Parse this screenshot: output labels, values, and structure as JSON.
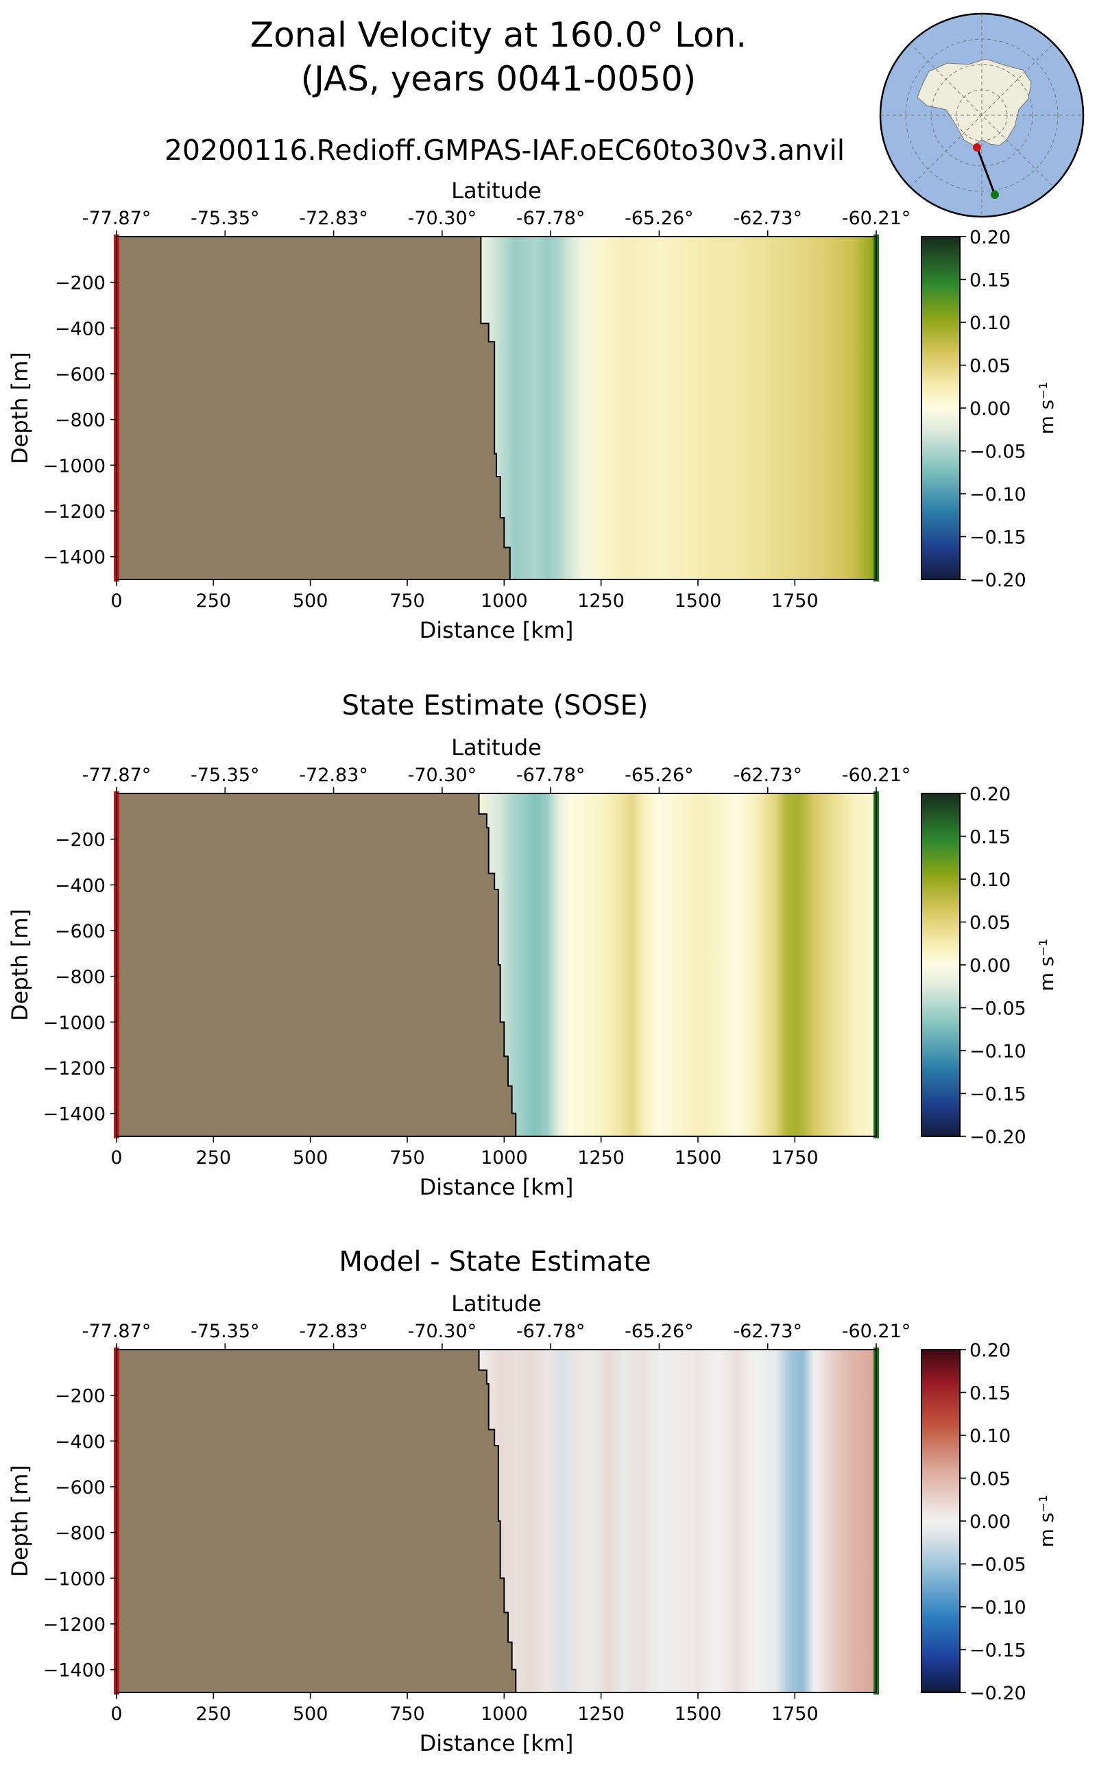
{
  "title_line1": "Zonal Velocity at 160.0° Lon.",
  "title_line2": "(JAS, years 0041-0050)",
  "subtitle": "20200116.Redioff.GMPAS-IAF.oEC60to30v3.anvil",
  "colors": {
    "land": "#8e7f64",
    "start_marker": "#cc1111",
    "end_marker": "#117711",
    "ocean_map": "#9cb9e2",
    "antarctica_map": "#eeeddb"
  },
  "chart_data": [
    {
      "type": "heatmap",
      "title": "",
      "xlabel": "Distance [km]",
      "ylabel": "Depth [m]",
      "top_axis_label": "Latitude",
      "xlim": [
        0,
        1960
      ],
      "ylim": [
        -1500,
        0
      ],
      "x_ticks": [
        "0",
        "250",
        "500",
        "750",
        "1000",
        "1250",
        "1500",
        "1750"
      ],
      "y_ticks": [
        "−200",
        "−400",
        "−600",
        "−800",
        "−1000",
        "−1200",
        "−1400"
      ],
      "lat_ticks": [
        "-77.87°",
        "-75.35°",
        "-72.83°",
        "-70.30°",
        "-67.78°",
        "-65.26°",
        "-62.73°",
        "-60.21°"
      ],
      "colorbar_label": "m s⁻¹",
      "colorbar_ticks": [
        "0.20",
        "0.15",
        "0.10",
        "0.05",
        "0.00",
        "−0.05",
        "−0.10",
        "−0.15",
        "−0.20"
      ],
      "colormap": "velocity",
      "profile_km": [
        930,
        950,
        970,
        990,
        1010,
        1030,
        1050,
        1080,
        1110,
        1140,
        1170,
        1200,
        1250,
        1300,
        1350,
        1400,
        1450,
        1500,
        1550,
        1600,
        1650,
        1700,
        1750,
        1800,
        1850,
        1900,
        1950
      ],
      "profile_values": [
        -0.01,
        -0.02,
        -0.03,
        -0.04,
        -0.05,
        -0.06,
        -0.055,
        -0.05,
        -0.06,
        -0.05,
        -0.03,
        -0.01,
        0.01,
        0.02,
        0.02,
        0.015,
        0.02,
        0.025,
        0.03,
        0.03,
        0.035,
        0.04,
        0.045,
        0.05,
        0.06,
        0.07,
        0.1
      ],
      "bathymetry_km": [
        930,
        940,
        960,
        975,
        980,
        990,
        1000,
        1015,
        1030
      ],
      "bathymetry_depth": [
        0,
        -380,
        -460,
        -950,
        -1050,
        -1230,
        -1360,
        -1500,
        -1500
      ]
    },
    {
      "type": "heatmap",
      "title": "State Estimate (SOSE)",
      "xlabel": "Distance [km]",
      "ylabel": "Depth [m]",
      "top_axis_label": "Latitude",
      "xlim": [
        0,
        1960
      ],
      "ylim": [
        -1500,
        0
      ],
      "x_ticks": [
        "0",
        "250",
        "500",
        "750",
        "1000",
        "1250",
        "1500",
        "1750"
      ],
      "y_ticks": [
        "−200",
        "−400",
        "−600",
        "−800",
        "−1000",
        "−1200",
        "−1400"
      ],
      "lat_ticks": [
        "-77.87°",
        "-75.35°",
        "-72.83°",
        "-70.30°",
        "-67.78°",
        "-65.26°",
        "-62.73°",
        "-60.21°"
      ],
      "colorbar_label": "m s⁻¹",
      "colorbar_ticks": [
        "0.20",
        "0.15",
        "0.10",
        "0.05",
        "0.00",
        "−0.05",
        "−0.10",
        "−0.15",
        "−0.20"
      ],
      "colormap": "velocity",
      "profile_km": [
        930,
        960,
        990,
        1020,
        1050,
        1080,
        1110,
        1140,
        1170,
        1200,
        1250,
        1300,
        1330,
        1360,
        1400,
        1450,
        1500,
        1550,
        1600,
        1650,
        1700,
        1730,
        1760,
        1800,
        1850,
        1900,
        1950
      ],
      "profile_values": [
        0.01,
        -0.02,
        -0.03,
        -0.05,
        -0.06,
        -0.07,
        -0.06,
        -0.02,
        0.0,
        0.005,
        0.015,
        0.03,
        0.045,
        0.02,
        0.0,
        0.01,
        0.02,
        0.015,
        0.0,
        0.02,
        0.05,
        0.085,
        0.09,
        0.06,
        0.04,
        0.02,
        0.01
      ],
      "bathymetry_km": [
        930,
        935,
        955,
        960,
        975,
        985,
        990,
        1000,
        1010,
        1020,
        1030
      ],
      "bathymetry_depth": [
        0,
        -90,
        -150,
        -350,
        -420,
        -750,
        -1000,
        -1150,
        -1280,
        -1400,
        -1500
      ]
    },
    {
      "type": "heatmap",
      "title": "Model - State Estimate",
      "xlabel": "Distance [km]",
      "ylabel": "Depth [m]",
      "top_axis_label": "Latitude",
      "xlim": [
        0,
        1960
      ],
      "ylim": [
        -1500,
        0
      ],
      "x_ticks": [
        "0",
        "250",
        "500",
        "750",
        "1000",
        "1250",
        "1500",
        "1750"
      ],
      "y_ticks": [
        "−200",
        "−400",
        "−600",
        "−800",
        "−1000",
        "−1200",
        "−1400"
      ],
      "lat_ticks": [
        "-77.87°",
        "-75.35°",
        "-72.83°",
        "-70.30°",
        "-67.78°",
        "-65.26°",
        "-62.73°",
        "-60.21°"
      ],
      "colorbar_label": "m s⁻¹",
      "colorbar_ticks": [
        "0.20",
        "0.15",
        "0.10",
        "0.05",
        "0.00",
        "−0.05",
        "−0.10",
        "−0.15",
        "−0.20"
      ],
      "colormap": "difference",
      "profile_km": [
        930,
        960,
        990,
        1030,
        1070,
        1110,
        1150,
        1190,
        1230,
        1270,
        1310,
        1350,
        1400,
        1450,
        1500,
        1550,
        1600,
        1650,
        1700,
        1740,
        1770,
        1800,
        1850,
        1900,
        1950
      ],
      "profile_values": [
        0.0,
        0.01,
        0.02,
        0.015,
        0.02,
        0.01,
        -0.02,
        0.01,
        -0.01,
        0.02,
        -0.01,
        0.015,
        -0.005,
        0.005,
        0.01,
        0.0,
        0.015,
        0.0,
        -0.01,
        -0.05,
        -0.06,
        0.0,
        0.03,
        0.05,
        0.06
      ],
      "bathymetry_km": [
        930,
        935,
        955,
        960,
        975,
        985,
        990,
        1000,
        1010,
        1020,
        1030
      ],
      "bathymetry_depth": [
        0,
        -90,
        -150,
        -350,
        -420,
        -750,
        -1000,
        -1150,
        -1280,
        -1400,
        -1500
      ]
    }
  ]
}
